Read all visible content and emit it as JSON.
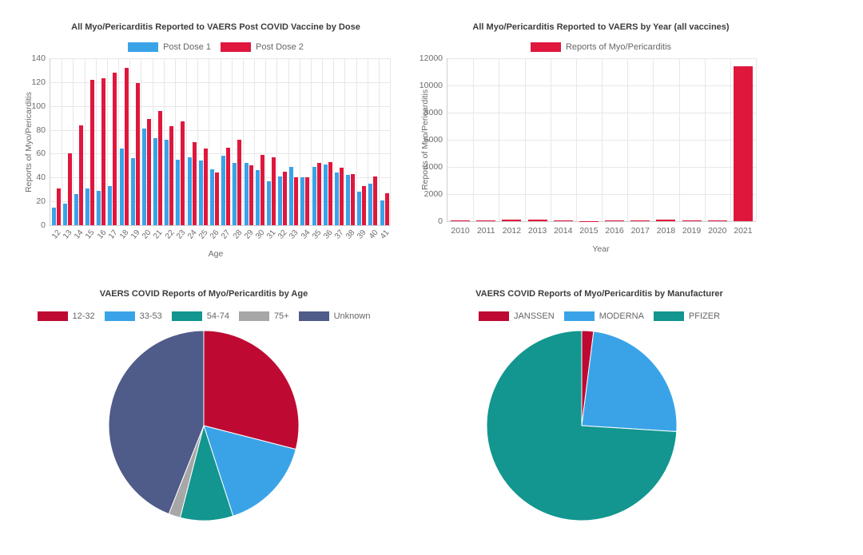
{
  "page": {
    "background": "#ffffff"
  },
  "chart_data": [
    {
      "id": "myo-pericarditis-post-covid-vaccine-by-dose",
      "type": "bar",
      "title": "All Myo/Pericarditis Reported to VAERS Post COVID Vaccine by Dose",
      "xlabel": "Age",
      "ylabel": "Reports of Myo/Pericarditis",
      "ylim": [
        0,
        140
      ],
      "ytick_step": 20,
      "grid": true,
      "legend_position": "top",
      "categories": [
        "12",
        "13",
        "14",
        "15",
        "16",
        "17",
        "18",
        "19",
        "20",
        "21",
        "22",
        "23",
        "24",
        "25",
        "26",
        "27",
        "28",
        "29",
        "30",
        "31",
        "32",
        "33",
        "34",
        "35",
        "36",
        "37",
        "38",
        "39",
        "40",
        "41"
      ],
      "series": [
        {
          "name": "Post Dose 1",
          "color": "#3AA3E8",
          "values": [
            15,
            18,
            26,
            31,
            29,
            33,
            64,
            56,
            81,
            73,
            72,
            55,
            57,
            54,
            47,
            58,
            52,
            52,
            46,
            37,
            41,
            49,
            40,
            49,
            51,
            44,
            42,
            28,
            35,
            21
          ]
        },
        {
          "name": "Post Dose 2",
          "color": "#E0173D",
          "values": [
            31,
            60,
            84,
            122,
            123,
            128,
            132,
            119,
            89,
            96,
            83,
            87,
            70,
            64,
            44,
            65,
            72,
            50,
            59,
            57,
            45,
            40,
            40,
            52,
            53,
            48,
            43,
            33,
            41,
            27
          ]
        }
      ]
    },
    {
      "id": "myo-pericarditis-by-year-all-vaccines",
      "type": "bar",
      "title": "All Myo/Pericarditis Reported to VAERS by Year (all vaccines)",
      "xlabel": "Year",
      "ylabel": "Reports of Myo/Pericarditis",
      "ylim": [
        0,
        12000
      ],
      "ytick_step": 2000,
      "grid": true,
      "legend_position": "top",
      "categories": [
        "2010",
        "2011",
        "2012",
        "2013",
        "2014",
        "2015",
        "2016",
        "2017",
        "2018",
        "2019",
        "2020",
        "2021"
      ],
      "series": [
        {
          "name": "Reports of Myo/Pericarditis",
          "color": "#E0173D",
          "values": [
            50,
            55,
            95,
            95,
            60,
            30,
            45,
            55,
            105,
            55,
            45,
            11400
          ]
        }
      ]
    },
    {
      "id": "covid-myo-pericarditis-by-age",
      "type": "pie",
      "title": "VAERS COVID Reports of Myo/Pericarditis by Age",
      "legend_position": "top",
      "slices": [
        {
          "label": "12-32",
          "color": "#BE0A32",
          "percent": 29
        },
        {
          "label": "33-53",
          "color": "#3AA3E8",
          "percent": 16
        },
        {
          "label": "54-74",
          "color": "#12968F",
          "percent": 9
        },
        {
          "label": "75+",
          "color": "#A7A7A7",
          "percent": 2
        },
        {
          "label": "Unknown",
          "color": "#4F5B88",
          "percent": 44
        }
      ]
    },
    {
      "id": "covid-myo-pericarditis-by-manufacturer",
      "type": "pie",
      "title": "VAERS COVID Reports of Myo/Pericarditis by Manufacturer",
      "legend_position": "top",
      "slices": [
        {
          "label": "JANSSEN",
          "color": "#BE0A32",
          "percent": 2
        },
        {
          "label": "MODERNA",
          "color": "#3AA3E8",
          "percent": 24
        },
        {
          "label": "PFIZER",
          "color": "#12968F",
          "percent": 74
        }
      ]
    }
  ]
}
